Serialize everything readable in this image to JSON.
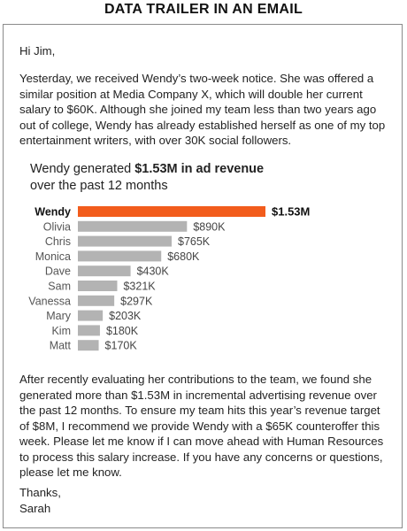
{
  "header": {
    "title": "DATA TRAILER IN AN EMAIL"
  },
  "email": {
    "greeting": "Hi Jim,",
    "paragraph1": "Yesterday, we received Wendy’s two-week notice. She was offered a similar position at Media Company X, which will double her current salary to $60K. Although she joined my team less than two years ago out of college, Wendy has already established herself as one of my top entertainment writers, with over 30K social followers.",
    "paragraph2": "After recently evaluating her contributions to the team, we found she generated more than $1.53M in incremental advertising revenue over the past 12 months. To ensure my team hits this year’s revenue target of $8M, I recommend we provide Wendy with a $65K counteroffer this week. Please let me know if I can move ahead with Human Resources to process this salary increase. If you have any concerns or questions, please let me know.",
    "closing": "Thanks,",
    "signature": "Sarah"
  },
  "chart_data": {
    "type": "bar",
    "orientation": "horizontal",
    "title_prefix": "Wendy generated ",
    "title_bold": "$1.53M in ad revenue",
    "title_suffix": "over the past 12 months",
    "categories": [
      "Wendy",
      "Olivia",
      "Chris",
      "Monica",
      "Dave",
      "Sam",
      "Vanessa",
      "Mary",
      "Kim",
      "Matt"
    ],
    "values": [
      1530,
      890,
      765,
      680,
      430,
      321,
      297,
      203,
      180,
      170
    ],
    "value_labels": [
      "$1.53M",
      "$890K",
      "$765K",
      "$680K",
      "$430K",
      "$321K",
      "$297K",
      "$203K",
      "$180K",
      "$170K"
    ],
    "unit": "$K",
    "highlight_index": 0,
    "colors": {
      "highlight": "#f25c1c",
      "default": "#b3b3b3"
    },
    "grid": false,
    "legend": "none"
  }
}
